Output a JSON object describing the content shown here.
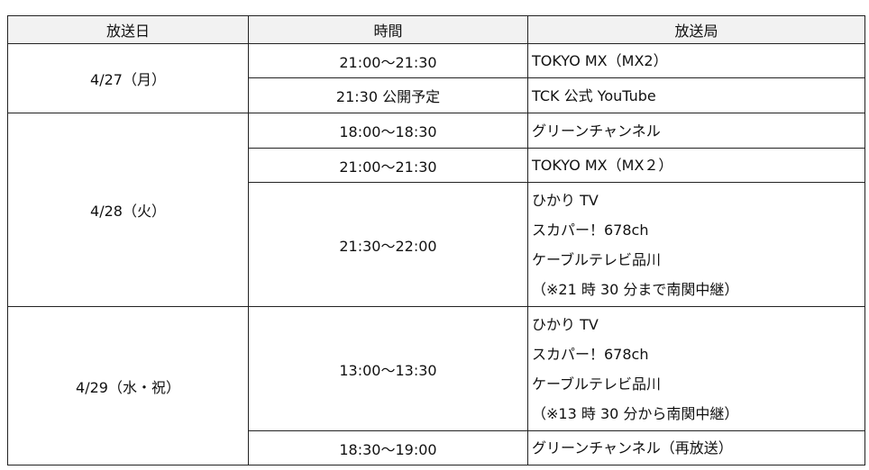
{
  "headers": {
    "date": "放送日",
    "time": "時間",
    "station": "放送局"
  },
  "groups": [
    {
      "date": "4/27（月）",
      "slots": [
        {
          "time": "21:00～21:30",
          "stations": [
            "TOKYO MX（MX2）"
          ]
        },
        {
          "time": "21:30 公開予定",
          "stations": [
            "TCK 公式 YouTube"
          ]
        }
      ]
    },
    {
      "date": "4/28（火）",
      "slots": [
        {
          "time": "18:00～18:30",
          "stations": [
            "グリーンチャンネル"
          ]
        },
        {
          "time": "21:00～21:30",
          "stations": [
            "TOKYO MX（MX２）"
          ]
        },
        {
          "time": "21:30～22:00",
          "stations": [
            "ひかり TV",
            "スカパー！678ch",
            "ケーブルテレビ品川",
            "（※21 時 30 分まで南関中継）"
          ]
        }
      ]
    },
    {
      "date": "4/29（水・祝）",
      "slots": [
        {
          "time": "13:00～13:30",
          "stations": [
            "ひかり TV",
            "スカパー！678ch",
            "ケーブルテレビ品川",
            "（※13 時 30 分から南関中継）"
          ]
        },
        {
          "time": "18:30～19:00",
          "stations": [
            "グリーンチャンネル（再放送）"
          ]
        }
      ]
    }
  ]
}
